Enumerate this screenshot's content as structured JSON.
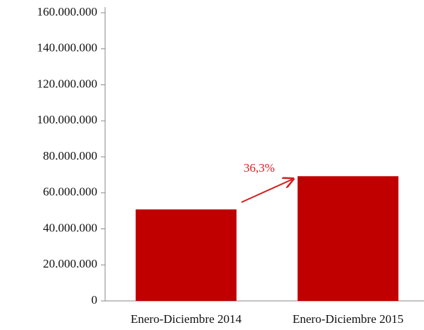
{
  "chart_data": {
    "type": "bar",
    "categories": [
      "Enero-Diciembre 2014",
      "Enero-Diciembre 2015"
    ],
    "values": [
      50800000,
      69250000
    ],
    "color": "#c00000",
    "annotation": "36,3%",
    "ylim": [
      0,
      160000000
    ],
    "yticks": [
      0,
      {
        "value": 20000000,
        "label": "20.000.000"
      },
      {
        "value": 40000000,
        "label": "40.000.000"
      },
      {
        "value": 60000000,
        "label": "60.000.000"
      },
      {
        "value": 80000000,
        "label": "80.000.000"
      },
      {
        "value": 100000000,
        "label": "100.000.000"
      },
      {
        "value": 120000000,
        "label": "120.000.000"
      },
      {
        "value": 140000000,
        "label": "140.000.000"
      },
      {
        "value": 160000000,
        "label": "160.000.000"
      }
    ],
    "grid": false
  }
}
